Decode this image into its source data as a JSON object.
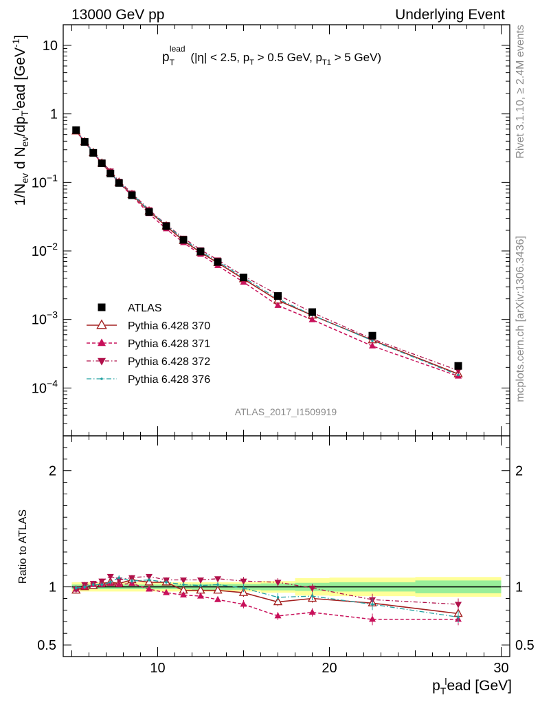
{
  "header": {
    "left": "13000 GeV pp",
    "right": "Underlying Event"
  },
  "side_labels": {
    "rivet": "Rivet 3.1.10, ≥ 2.4M events",
    "mcplots": "mcplots.cern.ch [arXiv:1306.3436]"
  },
  "chart_data": [
    {
      "type": "line",
      "panel": "main",
      "title": "p_T^lead (|η| < 2.5, p_T > 0.5 GeV, p_T1 > 5 GeV)",
      "watermark": "ATLAS_2017_I1509919",
      "ylabel": "1/N_ev d N_ev/dp_T^lead [GeV^-1]",
      "ylog": true,
      "xlim": [
        4.5,
        30.5
      ],
      "ylim": [
        2e-05,
        20
      ],
      "y_ticks": [
        "10^-4",
        "10^-3",
        "10^-2",
        "10^-1",
        "1",
        "10"
      ],
      "legend_position": "middle-left",
      "x": [
        5.25,
        5.75,
        6.25,
        6.75,
        7.25,
        7.75,
        8.5,
        9.5,
        10.5,
        11.5,
        12.5,
        13.5,
        15,
        17,
        19,
        22.5,
        27.5
      ],
      "series": [
        {
          "name": "ATLAS",
          "color": "#000000",
          "marker": "square",
          "values": [
            0.58,
            0.39,
            0.27,
            0.19,
            0.135,
            0.098,
            0.065,
            0.037,
            0.023,
            0.0145,
            0.0098,
            0.0069,
            0.0041,
            0.0022,
            0.00128,
            0.00058,
            0.00021
          ]
        },
        {
          "name": "Pythia 6.428 370",
          "color": "#a32020",
          "marker": "open-triangle-up",
          "values": [
            0.56,
            0.39,
            0.27,
            0.19,
            0.138,
            0.1,
            0.066,
            0.038,
            0.023,
            0.0141,
            0.0095,
            0.0067,
            0.0039,
            0.0019,
            0.00115,
            0.0005,
            0.00016
          ]
        },
        {
          "name": "Pythia 6.428 371",
          "color": "#c8105a",
          "marker": "triangle-up",
          "values": [
            0.57,
            0.39,
            0.27,
            0.19,
            0.137,
            0.099,
            0.064,
            0.035,
            0.021,
            0.0132,
            0.0089,
            0.0061,
            0.0035,
            0.0016,
            0.00099,
            0.00041,
            0.000149
          ]
        },
        {
          "name": "Pythia 6.428 372",
          "color": "#b0104a",
          "marker": "triangle-down",
          "values": [
            0.57,
            0.4,
            0.28,
            0.2,
            0.147,
            0.104,
            0.07,
            0.04,
            0.0243,
            0.0154,
            0.0104,
            0.0074,
            0.0043,
            0.00229,
            0.00126,
            0.00052,
            0.00018
          ]
        },
        {
          "name": "Pythia 6.428 376",
          "color": "#20a0a0",
          "marker": "dot",
          "values": [
            0.57,
            0.39,
            0.275,
            0.195,
            0.14,
            0.1,
            0.068,
            0.039,
            0.024,
            0.0148,
            0.0099,
            0.007,
            0.0041,
            0.002,
            0.00116,
            0.00049,
            0.000155
          ]
        }
      ]
    },
    {
      "type": "line",
      "panel": "ratio",
      "ylabel": "Ratio to ATLAS",
      "xlabel": "p_T^lead [GeV]",
      "xlim": [
        4.5,
        30.5
      ],
      "ylim": [
        0.4,
        2.3
      ],
      "x_ticks": [
        10,
        20,
        30
      ],
      "y_ticks": [
        0.5,
        1,
        2
      ],
      "x": [
        5.25,
        5.75,
        6.25,
        6.75,
        7.25,
        7.75,
        8.5,
        9.5,
        10.5,
        11.5,
        12.5,
        13.5,
        15,
        17,
        19,
        22.5,
        27.5
      ],
      "band_edges": [
        5,
        5.5,
        6,
        6.5,
        7,
        7.5,
        8,
        9,
        10,
        11,
        12,
        13,
        14,
        16,
        18,
        20,
        25,
        30
      ],
      "band_stat": [
        0.02,
        0.02,
        0.02,
        0.02,
        0.02,
        0.02,
        0.02,
        0.02,
        0.02,
        0.02,
        0.025,
        0.025,
        0.025,
        0.03,
        0.035,
        0.04,
        0.055
      ],
      "band_total": [
        0.04,
        0.04,
        0.04,
        0.04,
        0.04,
        0.04,
        0.04,
        0.04,
        0.04,
        0.04,
        0.04,
        0.04,
        0.04,
        0.05,
        0.075,
        0.08,
        0.085
      ],
      "series": [
        {
          "name": "Pythia 6.428 370",
          "values": [
            0.97,
            1.0,
            1.01,
            1.03,
            1.04,
            1.03,
            1.06,
            1.04,
            1.04,
            0.97,
            0.97,
            0.97,
            0.95,
            0.87,
            0.9,
            0.86,
            0.77
          ]
        },
        {
          "name": "Pythia 6.428 371",
          "values": [
            0.98,
            1.0,
            1.02,
            1.02,
            1.03,
            1.02,
            1.03,
            0.98,
            0.95,
            0.93,
            0.92,
            0.89,
            0.85,
            0.75,
            0.78,
            0.72,
            0.72
          ]
        },
        {
          "name": "Pythia 6.428 372",
          "values": [
            0.98,
            1.02,
            1.03,
            1.05,
            1.09,
            1.06,
            1.08,
            1.09,
            1.06,
            1.06,
            1.06,
            1.07,
            1.05,
            1.04,
            0.99,
            0.89,
            0.85
          ]
        },
        {
          "name": "Pythia 6.428 376",
          "values": [
            0.99,
            1.0,
            1.02,
            1.02,
            1.04,
            1.08,
            1.05,
            1.06,
            1.04,
            1.02,
            1.01,
            1.02,
            0.99,
            0.91,
            0.92,
            0.85,
            0.74
          ]
        }
      ]
    }
  ]
}
